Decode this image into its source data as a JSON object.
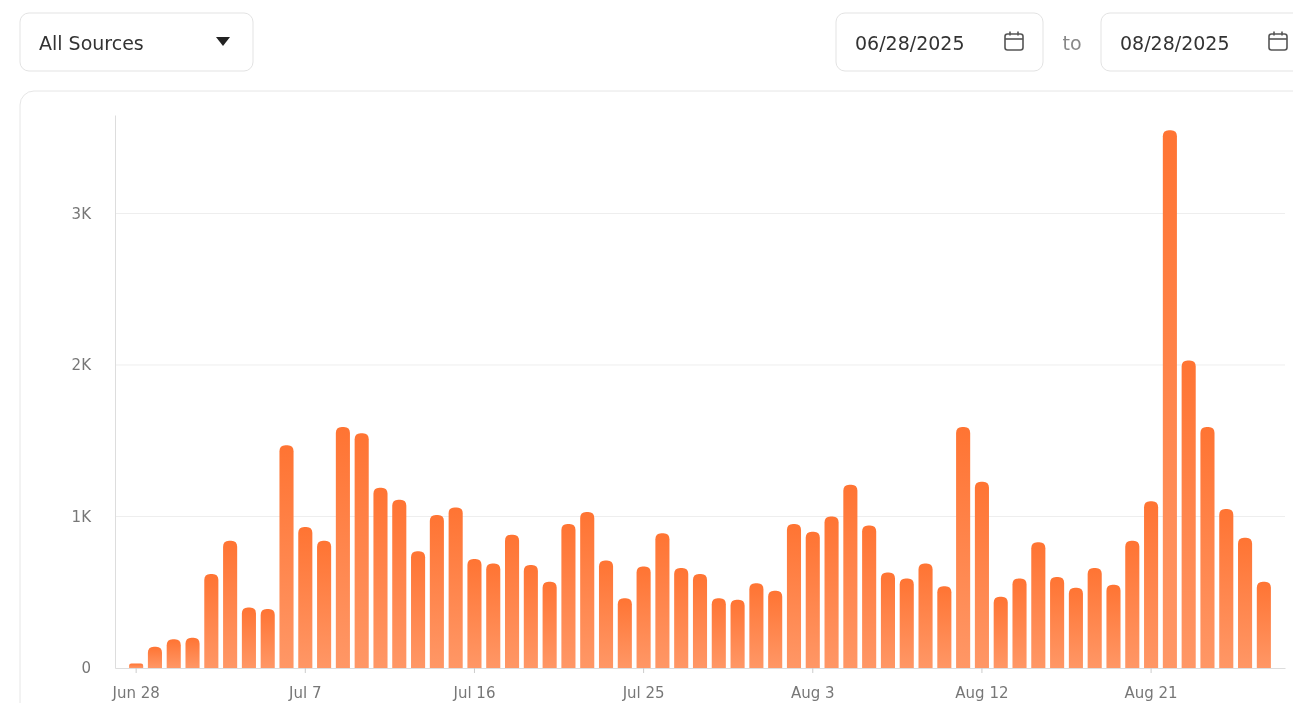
{
  "chart_data": {
    "type": "bar",
    "annotations": [
      "All Sources",
      "06/28/2025",
      "to",
      "08/28/2025"
    ],
    "categories": [
      "Jun 28",
      null,
      null,
      null,
      null,
      null,
      null,
      null,
      null,
      "Jul 7",
      null,
      null,
      null,
      null,
      null,
      null,
      null,
      null,
      "Jul 16",
      null,
      null,
      null,
      null,
      null,
      null,
      null,
      null,
      "Jul 25",
      null,
      null,
      null,
      null,
      null,
      null,
      null,
      null,
      "Aug 3",
      null,
      null,
      null,
      null,
      null,
      null,
      null,
      null,
      "Aug 12",
      null,
      null,
      null,
      null,
      null,
      null,
      null,
      null,
      "Aug 21",
      null,
      null,
      null,
      null,
      null,
      null
    ],
    "values": [
      30,
      140,
      190,
      200,
      620,
      840,
      400,
      390,
      1470,
      930,
      840,
      1590,
      1550,
      1190,
      1110,
      770,
      1010,
      1060,
      720,
      690,
      880,
      680,
      570,
      950,
      1030,
      710,
      460,
      670,
      890,
      660,
      620,
      460,
      450,
      560,
      510,
      950,
      900,
      1000,
      1210,
      940,
      630,
      590,
      690,
      540,
      1590,
      1230,
      470,
      590,
      830,
      600,
      530,
      660,
      550,
      840,
      1100,
      3550,
      2030,
      1590,
      1050,
      860,
      570
    ],
    "color": "#ff7433",
    "ylim": [
      0,
      3650
    ],
    "yticks": [
      0,
      {
        "value": 1000,
        "label": "1K"
      },
      {
        "value": 2000,
        "label": "2K"
      },
      {
        "value": 3000,
        "label": "3K"
      }
    ],
    "grid": "y"
  }
}
